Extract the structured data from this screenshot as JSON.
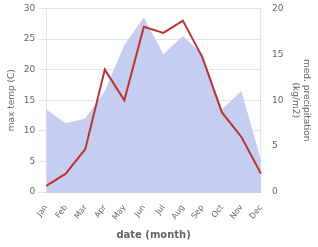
{
  "chart_data": {
    "type": "line",
    "categories": [
      "Jan",
      "Feb",
      "Mar",
      "Apr",
      "May",
      "Jun",
      "Jul",
      "Aug",
      "Sep",
      "Oct",
      "Nov",
      "Dec"
    ],
    "series": [
      {
        "type": "area",
        "axis": "y2",
        "color": "#c5cef0",
        "values": [
          9,
          7.5,
          8,
          11,
          16,
          19,
          15,
          17,
          15,
          9,
          11,
          3.5
        ]
      },
      {
        "type": "line",
        "color": "#bb3333",
        "values": [
          1,
          3,
          7,
          20,
          15,
          27,
          26,
          28,
          22,
          13,
          9,
          3
        ]
      }
    ],
    "xlabel": "date (month)",
    "ylabel": "max temp (C)",
    "y2label": "med. precipitation\n(kg/m2)",
    "ylim": [
      0,
      30
    ],
    "yticks": [
      0,
      5,
      10,
      15,
      20,
      25,
      30
    ],
    "y2lim": [
      0,
      20
    ],
    "y2ticks": [
      0,
      5,
      10,
      15,
      20
    ],
    "grid": true
  }
}
